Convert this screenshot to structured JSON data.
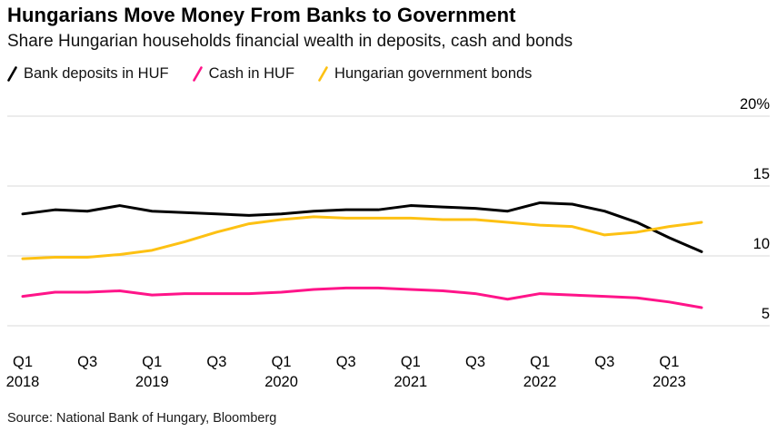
{
  "header": {
    "title": "Hungarians Move Money From Banks to Government",
    "subtitle": "Share Hungarian households financial wealth in deposits, cash and bonds"
  },
  "source": "Source: National Bank of Hungary, Bloomberg",
  "colors": {
    "deposits": "#000000",
    "cash": "#ff1489",
    "bonds": "#fdc113",
    "gridline": "#d9d9d9",
    "axis_text": "#000000"
  },
  "chart_data": {
    "type": "line",
    "title": "Hungarians Move Money From Banks to Government",
    "subtitle": "Share Hungarian households financial wealth in deposits, cash and bonds",
    "xlabel": "",
    "ylabel": "%",
    "ylim": [
      5,
      20
    ],
    "grid": "horizontal",
    "legend_position": "top",
    "x": [
      "2018 Q1",
      "2018 Q2",
      "2018 Q3",
      "2018 Q4",
      "2019 Q1",
      "2019 Q2",
      "2019 Q3",
      "2019 Q4",
      "2020 Q1",
      "2020 Q2",
      "2020 Q3",
      "2020 Q4",
      "2021 Q1",
      "2021 Q2",
      "2021 Q3",
      "2021 Q4",
      "2022 Q1",
      "2022 Q2",
      "2022 Q3",
      "2022 Q4",
      "2023 Q1",
      "2023 Q2"
    ],
    "series": [
      {
        "name": "Bank deposits in HUF",
        "color": "#000000",
        "values": [
          13.0,
          13.3,
          13.2,
          13.6,
          13.2,
          13.1,
          13.0,
          12.9,
          13.0,
          13.2,
          13.3,
          13.3,
          13.6,
          13.5,
          13.4,
          13.2,
          13.8,
          13.7,
          13.2,
          12.4,
          11.3,
          10.3
        ]
      },
      {
        "name": "Cash in HUF",
        "color": "#ff1489",
        "values": [
          7.1,
          7.4,
          7.4,
          7.5,
          7.2,
          7.3,
          7.3,
          7.3,
          7.4,
          7.6,
          7.7,
          7.7,
          7.6,
          7.5,
          7.3,
          6.9,
          7.3,
          7.2,
          7.1,
          7.0,
          6.7,
          6.3
        ]
      },
      {
        "name": "Hungarian government bonds",
        "color": "#fdc113",
        "values": [
          9.8,
          9.9,
          9.9,
          10.1,
          10.4,
          11.0,
          11.7,
          12.3,
          12.6,
          12.8,
          12.7,
          12.7,
          12.7,
          12.6,
          12.6,
          12.4,
          12.2,
          12.1,
          11.5,
          11.7,
          12.1,
          12.4
        ]
      }
    ],
    "y_ticks": [
      {
        "value": 20,
        "label": "20%"
      },
      {
        "value": 15,
        "label": "15"
      },
      {
        "value": 10,
        "label": "10"
      },
      {
        "value": 5,
        "label": "5"
      }
    ],
    "x_ticks": [
      {
        "index": 0,
        "label": "Q1",
        "year": "2018"
      },
      {
        "index": 2,
        "label": "Q3"
      },
      {
        "index": 4,
        "label": "Q1",
        "year": "2019"
      },
      {
        "index": 6,
        "label": "Q3"
      },
      {
        "index": 8,
        "label": "Q1",
        "year": "2020"
      },
      {
        "index": 10,
        "label": "Q3"
      },
      {
        "index": 12,
        "label": "Q1",
        "year": "2021"
      },
      {
        "index": 14,
        "label": "Q3"
      },
      {
        "index": 16,
        "label": "Q1",
        "year": "2022"
      },
      {
        "index": 18,
        "label": "Q3"
      },
      {
        "index": 20,
        "label": "Q1",
        "year": "2023"
      }
    ]
  }
}
